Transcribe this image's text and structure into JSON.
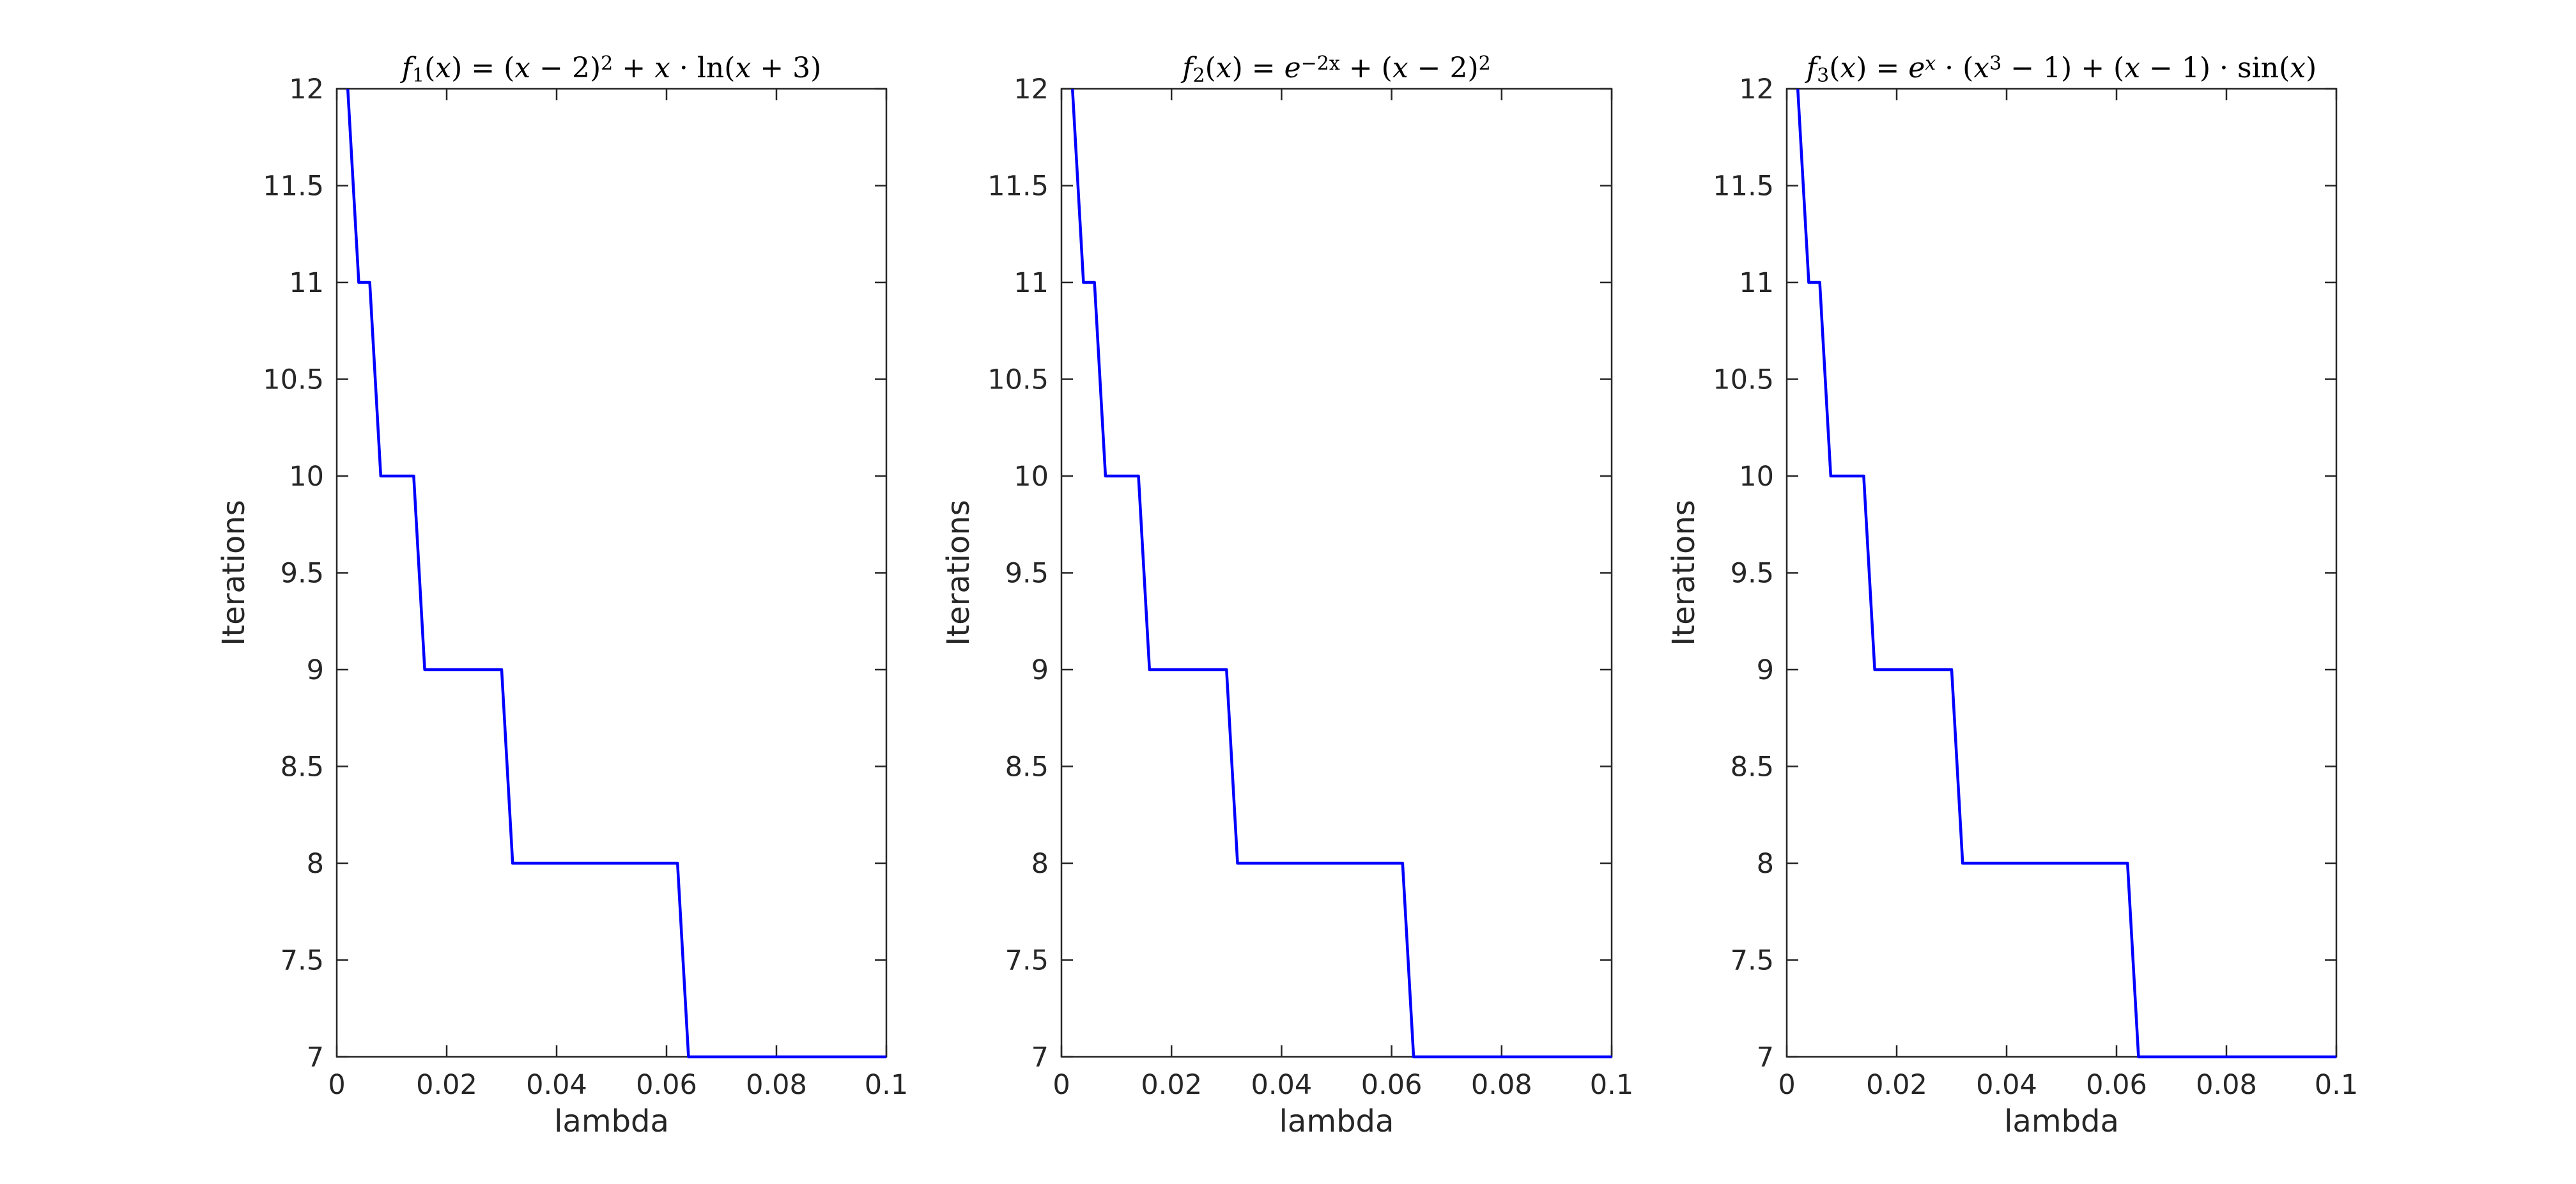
{
  "chart_data": [
    {
      "type": "line",
      "title": "f1(x) = (x − 2)² + x · ln(x + 3)",
      "title_parts": [
        {
          "t": "f",
          "i": true
        },
        {
          "t": "1",
          "sub": true
        },
        {
          "t": "("
        },
        {
          "t": "x",
          "i": true
        },
        {
          "t": ") = ("
        },
        {
          "t": "x",
          "i": true
        },
        {
          "t": " − 2)"
        },
        {
          "t": "2",
          "sup": true
        },
        {
          "t": " + "
        },
        {
          "t": "x",
          "i": true
        },
        {
          "t": " · ln("
        },
        {
          "t": "x",
          "i": true
        },
        {
          "t": " + 3)"
        }
      ],
      "xlabel": "lambda",
      "ylabel": "Iterations",
      "xlim": [
        0,
        0.1
      ],
      "ylim": [
        7,
        12
      ],
      "xticks": [
        "0",
        "0.02",
        "0.04",
        "0.06",
        "0.08",
        "0.1"
      ],
      "yticks": [
        "7",
        "7.5",
        "8",
        "8.5",
        "9",
        "9.5",
        "10",
        "10.5",
        "11",
        "11.5",
        "12"
      ],
      "line_color": "#0000FF",
      "series": [
        {
          "x": [
            0.002,
            0.004,
            0.006,
            0.008,
            0.014,
            0.016,
            0.03,
            0.032,
            0.062,
            0.064,
            0.1
          ],
          "y": [
            12,
            11,
            11,
            10,
            10,
            9,
            9,
            8,
            8,
            7,
            7
          ]
        }
      ]
    },
    {
      "type": "line",
      "title": "f2(x) = e^(−2x) + (x − 2)²",
      "title_parts": [
        {
          "t": "f",
          "i": true
        },
        {
          "t": "2",
          "sub": true
        },
        {
          "t": "("
        },
        {
          "t": "x",
          "i": true
        },
        {
          "t": ") = "
        },
        {
          "t": "e",
          "i": true
        },
        {
          "t": "−2x",
          "sup": true
        },
        {
          "t": " + ("
        },
        {
          "t": "x",
          "i": true
        },
        {
          "t": " − 2)"
        },
        {
          "t": "2",
          "sup": true
        }
      ],
      "xlabel": "lambda",
      "ylabel": "Iterations",
      "xlim": [
        0,
        0.1
      ],
      "ylim": [
        7,
        12
      ],
      "xticks": [
        "0",
        "0.02",
        "0.04",
        "0.06",
        "0.08",
        "0.1"
      ],
      "yticks": [
        "7",
        "7.5",
        "8",
        "8.5",
        "9",
        "9.5",
        "10",
        "10.5",
        "11",
        "11.5",
        "12"
      ],
      "line_color": "#0000FF",
      "series": [
        {
          "x": [
            0.002,
            0.004,
            0.006,
            0.008,
            0.014,
            0.016,
            0.03,
            0.032,
            0.062,
            0.064,
            0.1
          ],
          "y": [
            12,
            11,
            11,
            10,
            10,
            9,
            9,
            8,
            8,
            7,
            7
          ]
        }
      ]
    },
    {
      "type": "line",
      "title": "f3(x) = e^x · (x³ − 1) + (x − 1) · sin(x)",
      "title_parts": [
        {
          "t": "f",
          "i": true
        },
        {
          "t": "3",
          "sub": true
        },
        {
          "t": "("
        },
        {
          "t": "x",
          "i": true
        },
        {
          "t": ") = "
        },
        {
          "t": "e",
          "i": true
        },
        {
          "t": "x",
          "sup": true,
          "i": true
        },
        {
          "t": " · ("
        },
        {
          "t": "x",
          "i": true
        },
        {
          "t": "3",
          "sup": true
        },
        {
          "t": " − 1) + ("
        },
        {
          "t": "x",
          "i": true
        },
        {
          "t": " − 1) · sin("
        },
        {
          "t": "x",
          "i": true
        },
        {
          "t": ")"
        }
      ],
      "xlabel": "lambda",
      "ylabel": "Iterations",
      "xlim": [
        0,
        0.1
      ],
      "ylim": [
        7,
        12
      ],
      "xticks": [
        "0",
        "0.02",
        "0.04",
        "0.06",
        "0.08",
        "0.1"
      ],
      "yticks": [
        "7",
        "7.5",
        "8",
        "8.5",
        "9",
        "9.5",
        "10",
        "10.5",
        "11",
        "11.5",
        "12"
      ],
      "line_color": "#0000FF",
      "series": [
        {
          "x": [
            0.002,
            0.004,
            0.006,
            0.008,
            0.014,
            0.016,
            0.03,
            0.032,
            0.062,
            0.064,
            0.1
          ],
          "y": [
            12,
            11,
            11,
            10,
            10,
            9,
            9,
            8,
            8,
            7,
            7
          ]
        }
      ]
    }
  ]
}
